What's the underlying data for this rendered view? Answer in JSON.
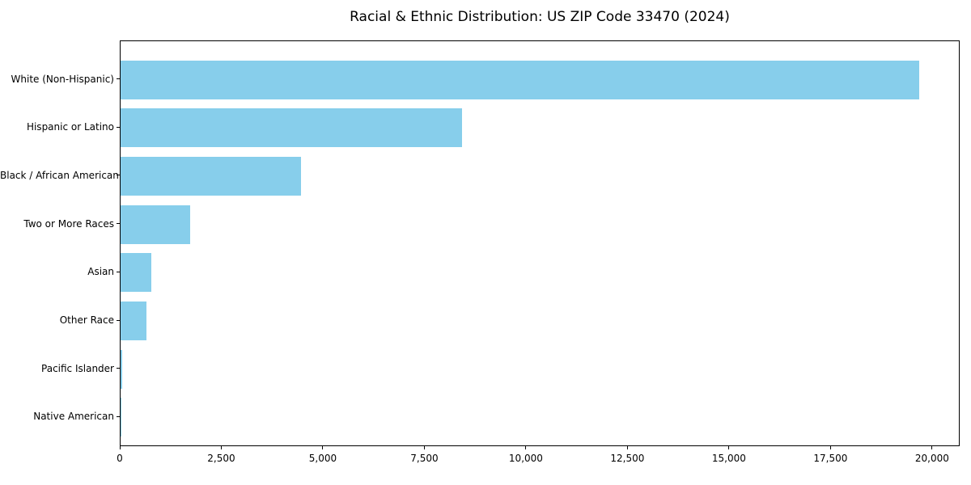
{
  "chart_data": {
    "type": "bar",
    "orientation": "horizontal",
    "title": "Racial & Ethnic Distribution: US ZIP Code 33470 (2024)",
    "categories": [
      "White (Non-Hispanic)",
      "Hispanic or Latino",
      "Black / African American",
      "Two or More Races",
      "Asian",
      "Other Race",
      "Pacific Islander",
      "Native American"
    ],
    "values": [
      19700,
      8430,
      4460,
      1710,
      760,
      640,
      30,
      10
    ],
    "bar_color": "#87CEEB",
    "background_color": "#ffffff",
    "text_color": "#000000",
    "xlabel": "",
    "ylabel": "",
    "xlim": [
      0,
      20680
    ],
    "xticks": [
      0,
      2500,
      5000,
      7500,
      10000,
      12500,
      15000,
      17500,
      20000
    ],
    "xtick_labels": [
      "0",
      "2,500",
      "5,000",
      "7,500",
      "10,000",
      "12,500",
      "15,000",
      "17,500",
      "20,000"
    ],
    "grid": false,
    "legend_position": "none"
  }
}
